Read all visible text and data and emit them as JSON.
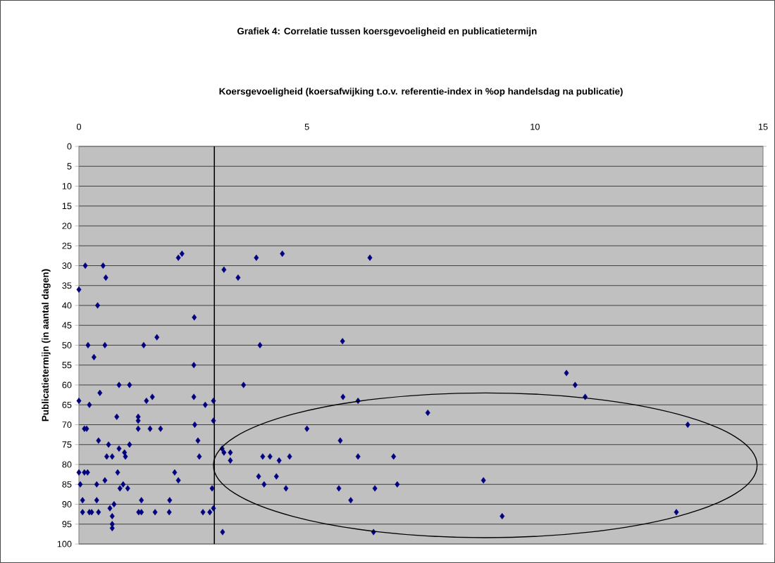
{
  "chart_data": {
    "type": "scatter",
    "title": "Grafiek 4: Correlatie tussen koersgevoeligheid en publicatietermijn",
    "xlabel": "Koersgevoeligheid (koersafwijking t.o.v. referentie-index in %op handelsdag na publicatie)",
    "ylabel": "Publicatietermijn (in aantal dagen)",
    "x": [
      0.14,
      0.53,
      0.59,
      0.0,
      0.41,
      0.2,
      0.57,
      1.42,
      1.71,
      0.33,
      0.88,
      1.11,
      0.46,
      0.0,
      0.23,
      1.48,
      1.61,
      0.83,
      1.3,
      1.3,
      1.3,
      0.12,
      0.17,
      1.56,
      1.79,
      0.43,
      0.65,
      1.11,
      0.88,
      1.0,
      1.02,
      0.61,
      0.73,
      0.0,
      0.12,
      0.19,
      0.85,
      0.03,
      0.39,
      0.57,
      0.9,
      0.97,
      1.07,
      0.08,
      0.39,
      1.37,
      1.99,
      0.08,
      0.23,
      0.28,
      0.43,
      0.68,
      0.77,
      0.73,
      0.73,
      0.73,
      1.31,
      1.37,
      1.67,
      1.98,
      2.18,
      2.26,
      2.53,
      2.52,
      2.52,
      2.77,
      2.95,
      2.54,
      2.95,
      2.61,
      2.64,
      2.1,
      2.18,
      2.92,
      2.72,
      2.87,
      2.95,
      3.18,
      3.49,
      3.89,
      4.46,
      6.38,
      3.97,
      5.78,
      3.61,
      5.79,
      6.12,
      7.65,
      5.0,
      3.14,
      3.18,
      3.32,
      3.32,
      4.03,
      4.19,
      4.39,
      4.62,
      3.94,
      4.33,
      4.06,
      4.54,
      5.73,
      6.12,
      6.9,
      5.7,
      6.49,
      6.98,
      5.96,
      8.87,
      9.28,
      6.46,
      3.15,
      10.69,
      10.88,
      11.1,
      13.35,
      13.1
    ],
    "values": [
      30,
      30,
      33,
      36,
      40,
      50,
      50,
      50,
      48,
      53,
      60,
      60,
      62,
      64,
      65,
      64,
      63,
      68,
      68,
      69,
      71,
      71,
      71,
      71,
      71,
      74,
      75,
      75,
      76,
      77,
      78,
      78,
      78,
      82,
      82,
      82,
      82,
      85,
      85,
      84,
      86,
      85,
      86,
      89,
      89,
      89,
      89,
      92,
      92,
      92,
      92,
      91,
      90,
      93,
      95,
      96,
      92,
      92,
      92,
      92,
      28,
      27,
      43,
      55,
      63,
      65,
      64,
      70,
      69,
      74,
      78,
      82,
      84,
      86,
      92,
      92,
      91,
      31,
      33,
      28,
      27,
      28,
      50,
      49,
      60,
      63,
      64,
      67,
      71,
      76,
      77,
      77,
      79,
      78,
      78,
      79,
      78,
      83,
      83,
      85,
      86,
      74,
      78,
      78,
      86,
      86,
      85,
      89,
      84,
      93,
      97,
      97,
      57,
      60,
      63,
      70,
      92
    ],
    "color": "#000080",
    "marker": "diamond",
    "xlim": [
      0,
      15
    ],
    "xticks": [
      0,
      5,
      10,
      15
    ],
    "ylim": [
      100,
      0
    ],
    "yticks": [
      0,
      5,
      10,
      15,
      20,
      25,
      30,
      35,
      40,
      45,
      50,
      55,
      60,
      65,
      70,
      75,
      80,
      85,
      90,
      95,
      100
    ],
    "grid": "y",
    "ref_lines": [
      {
        "axis": "x",
        "value": 2.97,
        "color": "#000000"
      }
    ]
  }
}
